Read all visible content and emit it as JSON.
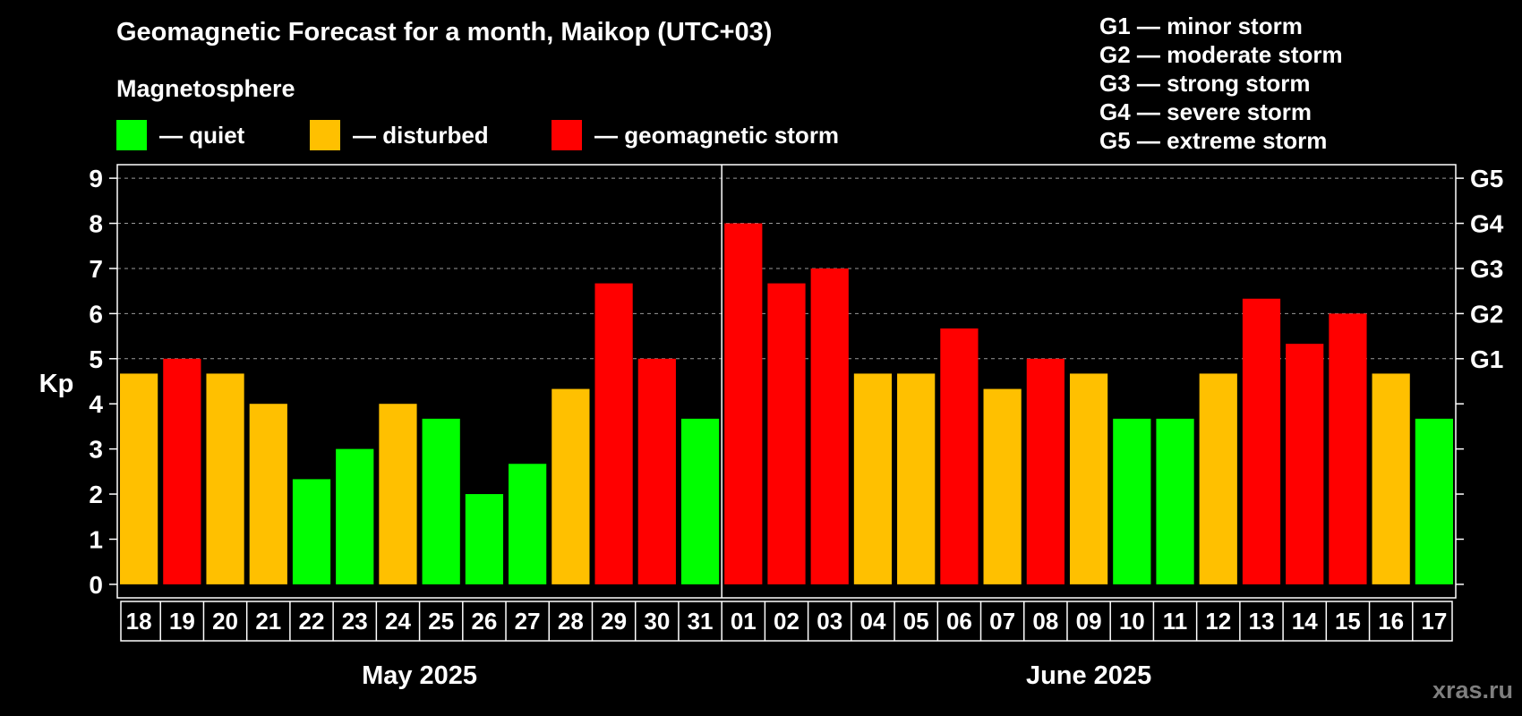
{
  "title": "Geomagnetic Forecast for a month, Maikop (UTC+03)",
  "magnetosphere_label": "Magnetosphere",
  "legend": [
    {
      "label": "— quiet",
      "color": "#00ff00"
    },
    {
      "label": "— disturbed",
      "color": "#ffc000"
    },
    {
      "label": "— geomagnetic storm",
      "color": "#ff0000"
    }
  ],
  "storm_scale": [
    "G1 — minor storm",
    "G2 — moderate storm",
    "G3 — strong storm",
    "G4 — severe storm",
    "G5 — extreme storm"
  ],
  "watermark": "xras.ru",
  "chart_data": {
    "type": "bar",
    "title": "Geomagnetic Forecast for a month, Maikop (UTC+03)",
    "ylabel": "Kp",
    "ylim": [
      -0.3,
      9.3
    ],
    "yticks": [
      0,
      1,
      2,
      3,
      4,
      5,
      6,
      7,
      8,
      9
    ],
    "right_axis": [
      {
        "value": 5,
        "label": "G1"
      },
      {
        "value": 6,
        "label": "G2"
      },
      {
        "value": 7,
        "label": "G3"
      },
      {
        "value": 8,
        "label": "G4"
      },
      {
        "value": 9,
        "label": "G5"
      }
    ],
    "grid": "horizontal dashed at 5-9",
    "categories": [
      "18",
      "19",
      "20",
      "21",
      "22",
      "23",
      "24",
      "25",
      "26",
      "27",
      "28",
      "29",
      "30",
      "31",
      "01",
      "02",
      "03",
      "04",
      "05",
      "06",
      "07",
      "08",
      "09",
      "10",
      "11",
      "12",
      "13",
      "14",
      "15",
      "16",
      "17"
    ],
    "values": [
      4.67,
      5,
      4.67,
      4,
      2.33,
      3,
      4,
      3.67,
      2,
      2.67,
      4.33,
      6.67,
      5,
      3.67,
      8,
      6.67,
      7,
      4.67,
      4.67,
      5.67,
      4.33,
      5,
      4.67,
      3.67,
      3.67,
      4.67,
      6.33,
      5.33,
      6,
      4.67,
      3.67
    ],
    "colors": [
      "#ffc000",
      "#ff0000",
      "#ffc000",
      "#ffc000",
      "#00ff00",
      "#00ff00",
      "#ffc000",
      "#00ff00",
      "#00ff00",
      "#00ff00",
      "#ffc000",
      "#ff0000",
      "#ff0000",
      "#00ff00",
      "#ff0000",
      "#ff0000",
      "#ff0000",
      "#ffc000",
      "#ffc000",
      "#ff0000",
      "#ffc000",
      "#ff0000",
      "#ffc000",
      "#00ff00",
      "#00ff00",
      "#ffc000",
      "#ff0000",
      "#ff0000",
      "#ff0000",
      "#ffc000",
      "#00ff00"
    ],
    "month_groups": [
      {
        "label": "May 2025",
        "count": 14
      },
      {
        "label": "June 2025",
        "count": 17
      }
    ]
  }
}
